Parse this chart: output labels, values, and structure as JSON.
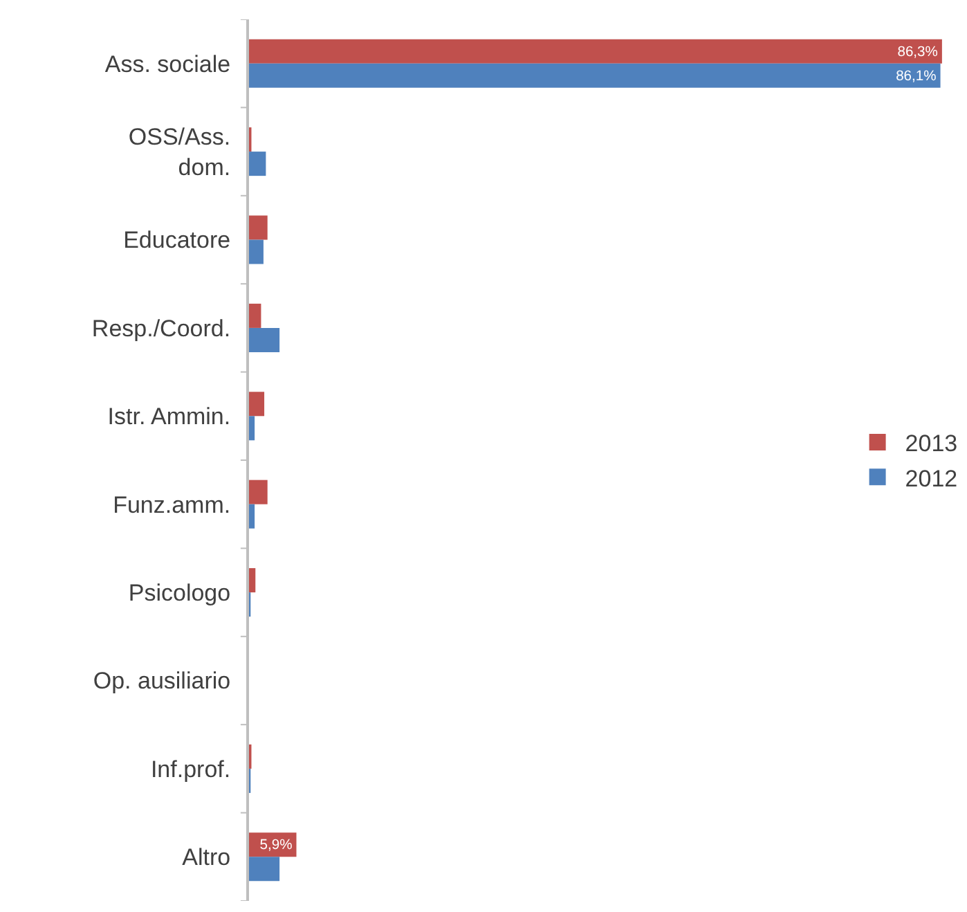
{
  "chart_data": {
    "type": "bar",
    "orientation": "horizontal",
    "categories": [
      "Ass. sociale",
      "OSS/Ass.\ndom.",
      "Educatore",
      "Resp./Coord.",
      "Istr. Ammin.",
      "Funz.amm.",
      "Psicologo",
      "Op. ausiliario",
      "Inf.prof.",
      "Altro"
    ],
    "series": [
      {
        "name": "2013",
        "color": "#c0504d",
        "values": [
          86.3,
          0.3,
          2.3,
          1.5,
          1.9,
          2.3,
          0.8,
          0,
          0.3,
          5.9
        ],
        "value_labels": [
          "86,3%",
          null,
          null,
          null,
          null,
          null,
          null,
          null,
          null,
          "5,9%"
        ]
      },
      {
        "name": "2012",
        "color": "#4f81bd",
        "values": [
          86.1,
          2.1,
          1.8,
          3.8,
          0.7,
          0.7,
          0.2,
          0,
          0.2,
          3.8
        ],
        "value_labels": [
          "86,1%",
          null,
          null,
          null,
          null,
          null,
          null,
          null,
          null,
          null
        ]
      }
    ],
    "xlim": [
      0,
      87
    ],
    "tick_labels": "y",
    "grid": false,
    "legend": "right"
  }
}
